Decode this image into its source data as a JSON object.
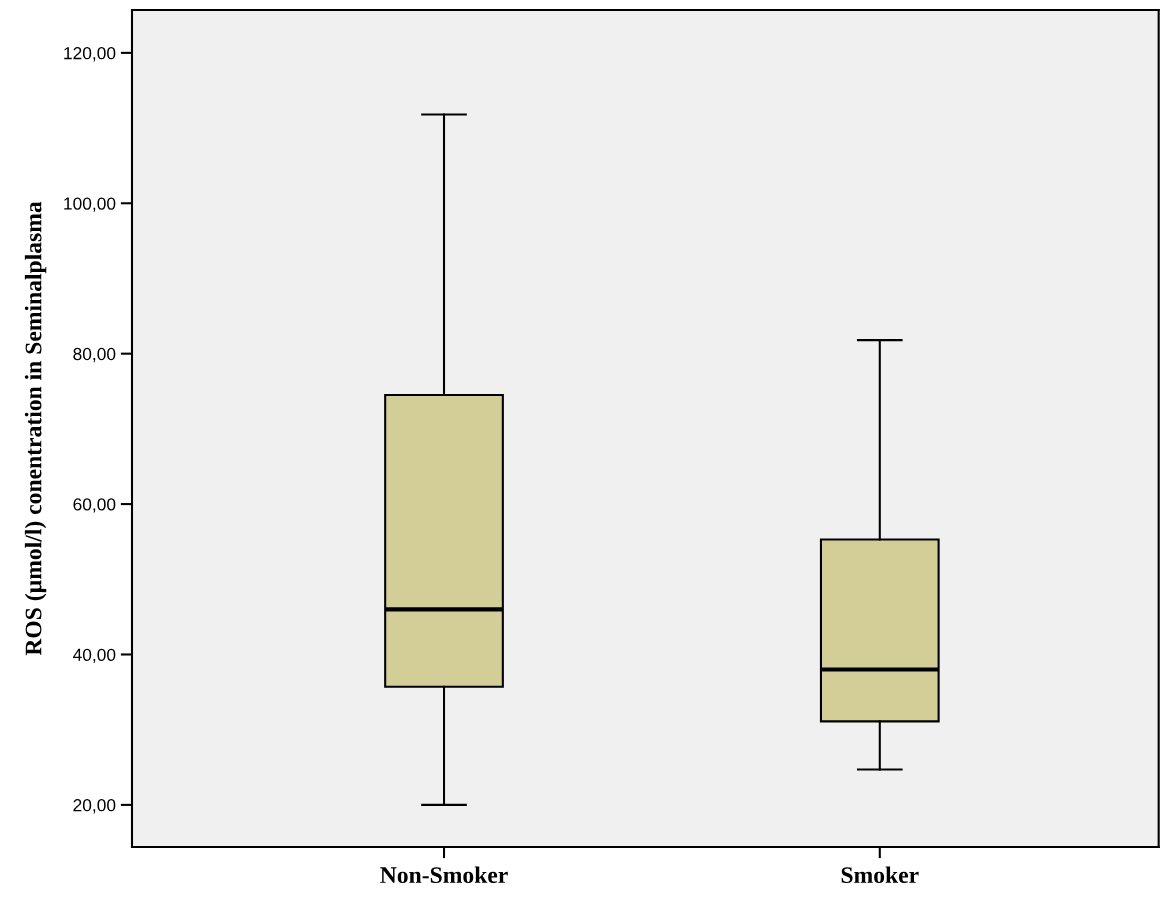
{
  "chart_data": {
    "type": "box",
    "ylabel": "ROS (µmol/l) conentration in Seminalplasma",
    "categories": [
      "Non-Smoker",
      "Smoker"
    ],
    "color": "#d3ce98",
    "boxes": [
      {
        "low": 20.0,
        "q1": 35.7,
        "median": 46.0,
        "q3": 74.5,
        "high": 111.8
      },
      {
        "low": 24.7,
        "q1": 31.1,
        "median": 38.0,
        "q3": 55.3,
        "high": 81.8
      }
    ],
    "ylim": [
      14.4,
      125.7
    ],
    "yticks": [
      {
        "value": 20,
        "label": "20,00"
      },
      {
        "value": 40,
        "label": "40,00"
      },
      {
        "value": 60,
        "label": "60,00"
      },
      {
        "value": 80,
        "label": "80,00"
      },
      {
        "value": 100,
        "label": "100,00"
      },
      {
        "value": 120,
        "label": "120,00"
      }
    ],
    "grid": false
  }
}
